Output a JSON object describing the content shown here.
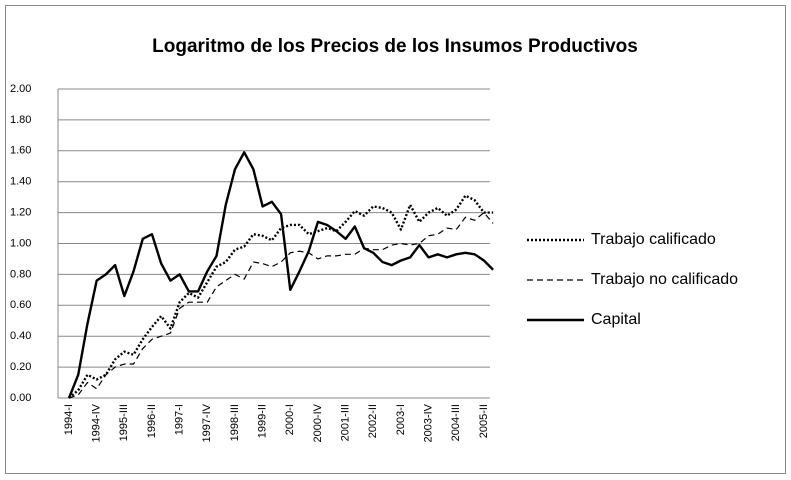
{
  "chart_data": {
    "type": "line",
    "title": "Logaritmo de los Precios de los Insumos Productivos",
    "categories": [
      "1994-I",
      null,
      null,
      "1994-IV",
      null,
      null,
      "1995-III",
      null,
      null,
      "1996-II",
      null,
      null,
      "1997-I",
      null,
      null,
      "1997-IV",
      null,
      null,
      "1998-III",
      null,
      null,
      "1999-II",
      null,
      null,
      "2000-I",
      null,
      null,
      "2000-IV",
      null,
      null,
      "2001-III",
      null,
      null,
      "2002-II",
      null,
      null,
      "2003-I",
      null,
      null,
      "2003-IV",
      null,
      null,
      "2004-III",
      null,
      null,
      "2005-II",
      null
    ],
    "series": [
      {
        "name": "Trabajo calificado",
        "color": "#000000",
        "line_style": "dotted",
        "values": [
          0,
          0.05,
          0.15,
          0.12,
          0.15,
          0.25,
          0.3,
          0.28,
          0.38,
          0.46,
          0.53,
          0.45,
          0.62,
          0.68,
          0.65,
          0.75,
          0.85,
          0.88,
          0.96,
          0.98,
          1.06,
          1.05,
          1.02,
          1.1,
          1.12,
          1.12,
          1.06,
          1.08,
          1.1,
          1.08,
          1.14,
          1.21,
          1.18,
          1.24,
          1.23,
          1.2,
          1.09,
          1.25,
          1.14,
          1.2,
          1.23,
          1.18,
          1.22,
          1.31,
          1.28,
          1.2,
          1.2
        ]
      },
      {
        "name": "Trabajo no calificado",
        "color": "#000000",
        "line_style": "dashed",
        "values": [
          0,
          0.02,
          0.1,
          0.06,
          0.15,
          0.2,
          0.22,
          0.22,
          0.32,
          0.38,
          0.4,
          0.42,
          0.58,
          0.62,
          0.62,
          0.62,
          0.72,
          0.76,
          0.8,
          0.77,
          0.88,
          0.87,
          0.85,
          0.88,
          0.94,
          0.95,
          0.94,
          0.9,
          0.92,
          0.92,
          0.93,
          0.93,
          0.97,
          0.96,
          0.96,
          0.99,
          1.0,
          0.99,
          1.0,
          1.05,
          1.06,
          1.1,
          1.09,
          1.17,
          1.15,
          1.2,
          1.13
        ]
      },
      {
        "name": "Capital",
        "color": "#000000",
        "line_style": "solid",
        "values": [
          0,
          0.15,
          0.48,
          0.76,
          0.8,
          0.86,
          0.66,
          0.82,
          1.03,
          1.06,
          0.87,
          0.76,
          0.8,
          0.69,
          0.69,
          0.82,
          0.92,
          1.25,
          1.48,
          1.59,
          1.48,
          1.24,
          1.27,
          1.19,
          0.7,
          0.82,
          0.95,
          1.14,
          1.12,
          1.08,
          1.03,
          1.11,
          0.97,
          0.94,
          0.88,
          0.86,
          0.89,
          0.91,
          0.99,
          0.91,
          0.93,
          0.91,
          0.93,
          0.94,
          0.93,
          0.89,
          0.83
        ]
      }
    ],
    "ylim": [
      0,
      2
    ],
    "yticks": [
      {
        "value": 0,
        "label": "0.00"
      },
      {
        "value": 0.2,
        "label": "0.20"
      },
      {
        "value": 0.4,
        "label": "0.40"
      },
      {
        "value": 0.6,
        "label": "0.60"
      },
      {
        "value": 0.8,
        "label": "0.80"
      },
      {
        "value": 1,
        "label": "1.00"
      },
      {
        "value": 1.2,
        "label": "1.20"
      },
      {
        "value": 1.4,
        "label": "1.40"
      },
      {
        "value": 1.6,
        "label": "1.60"
      },
      {
        "value": 1.8,
        "label": "1.80"
      },
      {
        "value": 2,
        "label": "2.00"
      }
    ],
    "grid": true,
    "legend": "right"
  }
}
